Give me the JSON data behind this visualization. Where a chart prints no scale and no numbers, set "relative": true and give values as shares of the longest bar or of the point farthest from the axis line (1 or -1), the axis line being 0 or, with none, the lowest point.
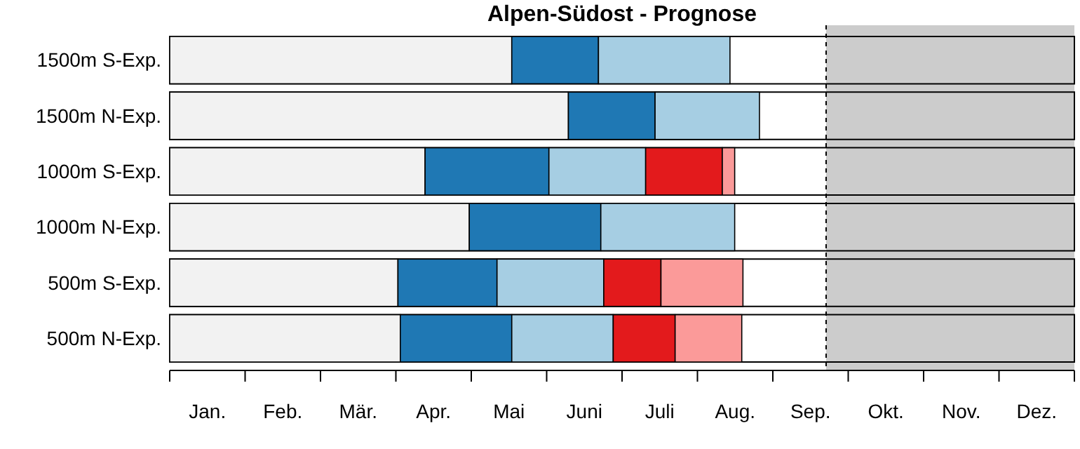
{
  "chart_data": {
    "type": "bar",
    "orientation": "horizontal",
    "stacked": true,
    "relative": true,
    "title": "Alpen-Südost - Prognose",
    "categories": [
      "1500m S-Exp.",
      "1500m N-Exp.",
      "1000m S-Exp.",
      "1000m N-Exp.",
      "500m S-Exp.",
      "500m N-Exp."
    ],
    "series": [
      {
        "color": "#f2f2f2",
        "values": [
          0.58,
          0.676,
          0.433,
          0.508,
          0.387,
          0.391
        ]
      },
      {
        "color": "#1f78b4",
        "values": [
          0.147,
          0.147,
          0.21,
          0.223,
          0.168,
          0.189
        ]
      },
      {
        "color": "#a6cee3",
        "values": [
          0.223,
          0.177,
          0.164,
          0.227,
          0.181,
          0.172
        ]
      },
      {
        "color": "#e31a1c",
        "values": [
          null,
          null,
          0.13,
          null,
          0.097,
          0.105
        ]
      },
      {
        "color": "#fb9a99",
        "values": [
          null,
          null,
          0.021,
          null,
          0.139,
          0.113
        ]
      }
    ],
    "bands": [
      {
        "axis": "x",
        "from": 1.113,
        "to": 1.534,
        "color": "#cccccc"
      }
    ],
    "ref_lines": [
      {
        "axis": "x",
        "value": 1.113,
        "line_style": "dashed"
      }
    ],
    "annotations": [
      "Jan.",
      "Feb.",
      "Mär.",
      "Apr.",
      "Mai",
      "Juni",
      "Juli",
      "Aug.",
      "Sep.",
      "Okt.",
      "Nov.",
      "Dez."
    ]
  }
}
